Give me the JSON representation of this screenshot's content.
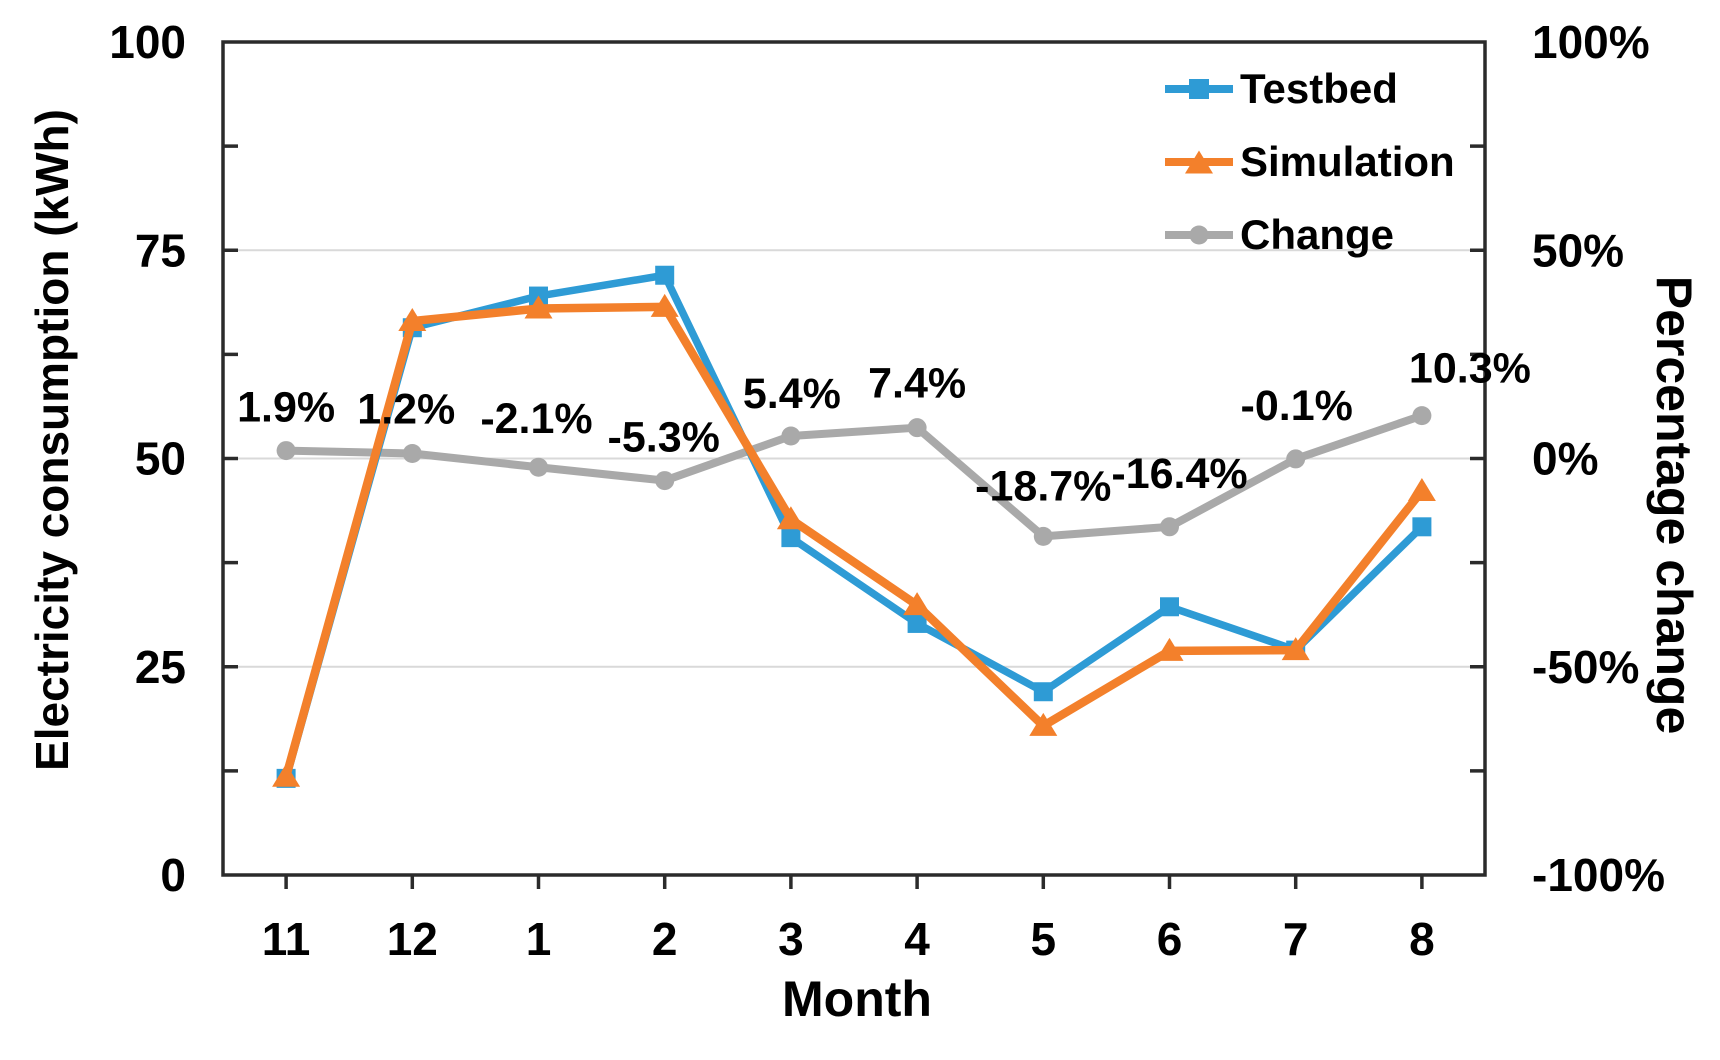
{
  "chart_data": {
    "type": "line",
    "title": "",
    "x_axis": {
      "label": "Month",
      "categories": [
        "11",
        "12",
        "1",
        "2",
        "3",
        "4",
        "5",
        "6",
        "7",
        "8"
      ]
    },
    "y_axis_left": {
      "label": "Electricity consumption (kWh)",
      "ticks": [
        "0",
        "25",
        "50",
        "75",
        "100"
      ],
      "tick_values": [
        0,
        25,
        50,
        75,
        100
      ],
      "range": [
        0,
        100
      ],
      "minor_tick_step": 12.5
    },
    "y_axis_right": {
      "label": "Percentage change",
      "ticks": [
        "-100%",
        "-50%",
        "0%",
        "50%",
        "100%"
      ],
      "tick_values": [
        -100,
        -50,
        0,
        50,
        100
      ],
      "range": [
        -100,
        100
      ]
    },
    "grid": "horizontal",
    "legend_position": "top-right-inside",
    "series": [
      {
        "name": "Testbed",
        "axis": "left",
        "marker": "square",
        "color": "#2E9BD5",
        "values": [
          11.6,
          65.7,
          69.5,
          72.0,
          40.5,
          30.2,
          22.0,
          32.2,
          27.0,
          41.8
        ]
      },
      {
        "name": "Simulation",
        "axis": "left",
        "marker": "triangle",
        "color": "#F3802B",
        "values": [
          11.8,
          66.5,
          68.0,
          68.2,
          42.7,
          32.4,
          17.9,
          26.9,
          27.0,
          46.1
        ]
      },
      {
        "name": "Change",
        "axis": "right",
        "marker": "circle",
        "color": "#A9A9A9",
        "values": [
          1.9,
          1.2,
          -2.1,
          -5.3,
          5.4,
          7.4,
          -18.7,
          -16.4,
          -0.1,
          10.3
        ],
        "labels": [
          "1.9%",
          "1.2%",
          "-2.1%",
          "-5.3%",
          "5.4%",
          "7.4%",
          "-18.7%",
          "-16.4%",
          "-0.1%",
          "10.3%"
        ]
      }
    ],
    "colors": {
      "grid": "#D9D9D9",
      "axis": "#2B2B2B",
      "text": "#000000",
      "background": "#FFFFFF"
    }
  }
}
